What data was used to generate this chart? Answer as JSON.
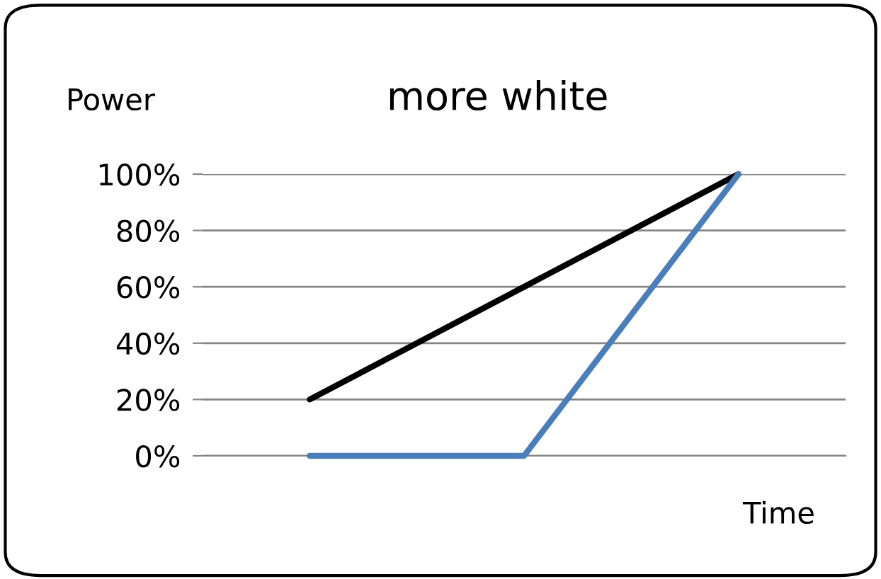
{
  "chart_data": {
    "type": "line",
    "title": "more white",
    "ylabel": "Power",
    "xlabel": "Time",
    "categories": [
      null,
      null,
      null
    ],
    "series": [
      {
        "color": "#000000",
        "values": [
          20,
          60,
          100
        ]
      },
      {
        "color": "#4a7ebb",
        "values": [
          0,
          0,
          100
        ]
      }
    ],
    "ylim": [
      0,
      100
    ],
    "yticks": [
      {
        "value": 0,
        "label": "0%"
      },
      {
        "value": 20,
        "label": "20%"
      },
      {
        "value": 40,
        "label": "40%"
      },
      {
        "value": 60,
        "label": "60%"
      },
      {
        "value": 80,
        "label": "80%"
      },
      {
        "value": 100,
        "label": "100%"
      }
    ],
    "grid": "y",
    "legend": false,
    "marker": "none",
    "line_style": "solid"
  }
}
